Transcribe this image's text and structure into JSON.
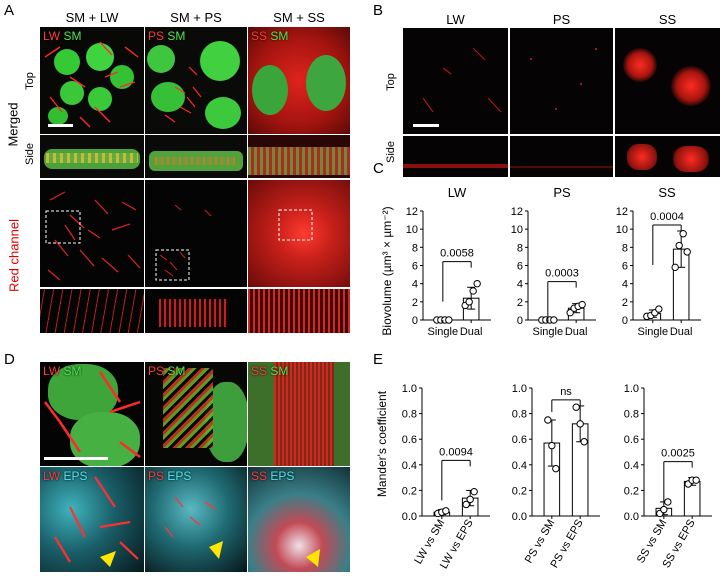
{
  "panels": {
    "A": "A",
    "B": "B",
    "C": "C",
    "D": "D",
    "E": "E"
  },
  "panelA": {
    "headers": [
      "SM + LW",
      "SM + PS",
      "SM + SS"
    ],
    "row_merged": "Merged",
    "row_red": "Red channel",
    "top": "Top",
    "side": "Side",
    "tags": [
      [
        "LW",
        " SM"
      ],
      [
        "PS",
        " SM"
      ],
      [
        "SS",
        " SM"
      ]
    ]
  },
  "panelB": {
    "headers": [
      "LW",
      "PS",
      "SS"
    ],
    "top": "Top",
    "side": "Side"
  },
  "panelD": {
    "tags_top": [
      [
        "LW",
        " SM"
      ],
      [
        "PS",
        " SM"
      ],
      [
        "SS",
        " SM"
      ]
    ],
    "tags_bottom": [
      [
        "LW",
        " EPS"
      ],
      [
        "PS",
        " EPS"
      ],
      [
        "SS",
        " EPS"
      ]
    ]
  },
  "colors": {
    "red": "#ff2a2a",
    "green": "#3ddc3d",
    "cyan": "#4ee8ef",
    "arrow": "#ffe600"
  },
  "chart_data": [
    {
      "type": "bar",
      "title": "LW",
      "ylabel": "Biovolume (µm³ × µm⁻²)",
      "ylim": [
        0,
        12
      ],
      "yticks": [
        0,
        2,
        4,
        6,
        8,
        10,
        12
      ],
      "categories": [
        "Single",
        "Dual"
      ],
      "values": [
        0.0,
        2.4
      ],
      "errors": [
        0.05,
        1.2
      ],
      "points": [
        [
          0,
          0,
          0,
          0
        ],
        [
          1.6,
          2.0,
          3.2,
          4.0
        ]
      ],
      "annotation": "0.0058"
    },
    {
      "type": "bar",
      "title": "PS",
      "ylim": [
        0,
        12
      ],
      "yticks": [
        0,
        2,
        4,
        6,
        8,
        10,
        12
      ],
      "categories": [
        "Single",
        "Dual"
      ],
      "values": [
        0.0,
        1.3
      ],
      "errors": [
        0.05,
        0.5
      ],
      "points": [
        [
          0,
          0,
          0,
          0
        ],
        [
          0.8,
          1.3,
          1.5,
          1.7
        ]
      ],
      "annotation": "0.0003"
    },
    {
      "type": "bar",
      "title": "SS",
      "ylim": [
        0,
        12
      ],
      "yticks": [
        0,
        2,
        4,
        6,
        8,
        10,
        12
      ],
      "categories": [
        "Single",
        "Dual"
      ],
      "values": [
        0.7,
        7.8
      ],
      "errors": [
        0.4,
        2.0
      ],
      "points": [
        [
          0.4,
          0.5,
          0.8,
          1.2
        ],
        [
          5.8,
          8.2,
          9.5,
          7.5
        ]
      ],
      "annotation": "0.0004"
    },
    {
      "type": "bar",
      "ylabel": "Mander's coefficient",
      "ylim": [
        0,
        1.0
      ],
      "yticks": [
        0.0,
        0.2,
        0.4,
        0.6,
        0.8,
        1.0
      ],
      "categories": [
        "LW vs SM",
        "LW vs EPS"
      ],
      "values": [
        0.03,
        0.14
      ],
      "errors": [
        0.02,
        0.06
      ],
      "points": [
        [
          0.02,
          0.03,
          0.04
        ],
        [
          0.09,
          0.13,
          0.19
        ]
      ],
      "annotation": "0.0094"
    },
    {
      "type": "bar",
      "ylim": [
        0,
        1.0
      ],
      "yticks": [
        0.0,
        0.2,
        0.4,
        0.6,
        0.8,
        1.0
      ],
      "categories": [
        "PS vs SM",
        "PS vs EPS"
      ],
      "values": [
        0.57,
        0.72
      ],
      "errors": [
        0.18,
        0.14
      ],
      "points": [
        [
          0.75,
          0.55,
          0.37
        ],
        [
          0.85,
          0.72,
          0.58
        ]
      ],
      "annotation": "ns"
    },
    {
      "type": "bar",
      "ylim": [
        0,
        1.0
      ],
      "yticks": [
        0.0,
        0.2,
        0.4,
        0.6,
        0.8,
        1.0
      ],
      "categories": [
        "SS vs SM",
        "SS vs EPS"
      ],
      "values": [
        0.06,
        0.27
      ],
      "errors": [
        0.05,
        0.03
      ],
      "points": [
        [
          0.02,
          0.05,
          0.11
        ],
        [
          0.25,
          0.28,
          0.28
        ]
      ],
      "annotation": "0.0025"
    }
  ]
}
